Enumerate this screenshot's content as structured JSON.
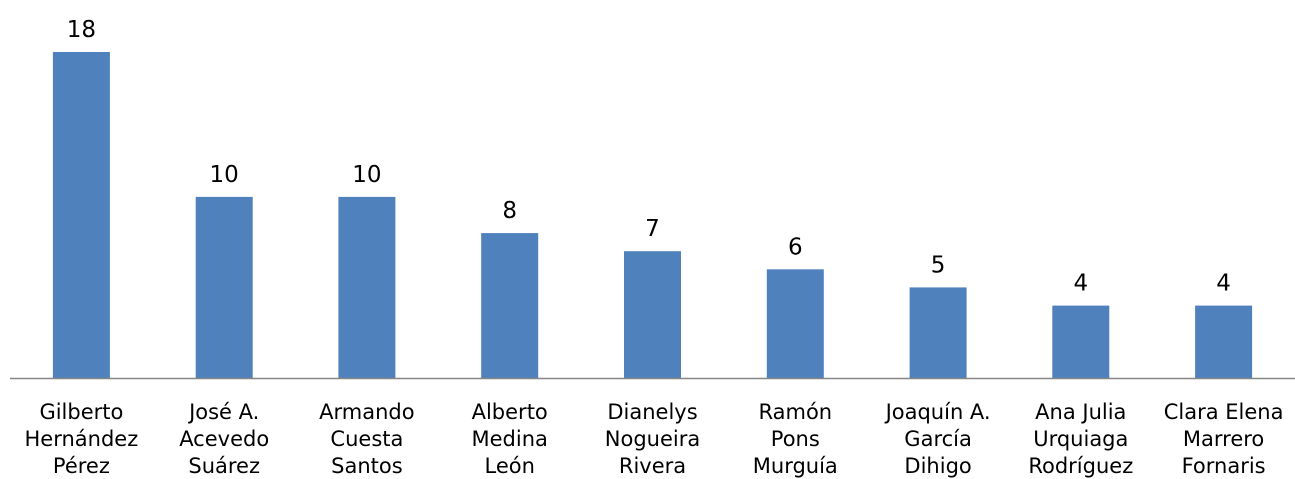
{
  "chart_data": {
    "type": "bar",
    "title": "",
    "xlabel": "",
    "ylabel": "",
    "ylim": [
      0,
      18
    ],
    "grid": false,
    "legend": "none",
    "bar_color": "#4F81BD",
    "axis_color": "#868686",
    "categories": [
      [
        "Gilberto",
        "Hernández",
        "Pérez"
      ],
      [
        "José A.",
        "Acevedo",
        "Suárez"
      ],
      [
        "Armando",
        "Cuesta",
        "Santos"
      ],
      [
        "Alberto",
        "Medina",
        "León"
      ],
      [
        "Dianelys",
        "Nogueira",
        "Rivera"
      ],
      [
        "Ramón",
        "Pons",
        "Murguía"
      ],
      [
        "Joaquín A.",
        "García",
        "Dihigo"
      ],
      [
        "Ana Julia",
        "Urquiaga",
        "Rodríguez"
      ],
      [
        "Clara Elena",
        "Marrero",
        "Fornaris"
      ]
    ],
    "values": [
      18,
      10,
      10,
      8,
      7,
      6,
      5,
      4,
      4
    ]
  }
}
